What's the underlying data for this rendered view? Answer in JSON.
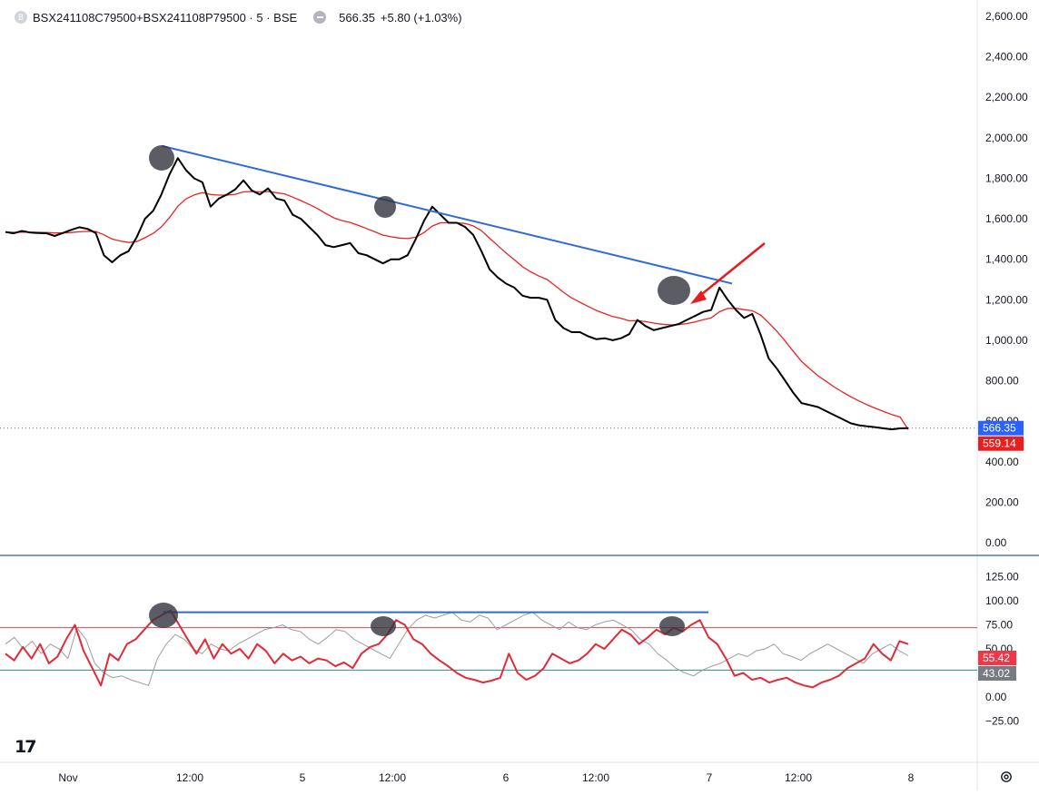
{
  "header": {
    "symbol_badge": "B",
    "symbol": "BSX241108C79500+BSX241108P79500 · 5 · BSE",
    "last": "566.35",
    "change": "+5.80 (+1.03%)"
  },
  "colors": {
    "price_line": "#000000",
    "ma_line": "#e82323",
    "trendline": "#2f6bd8",
    "arrow": "#e51d1d",
    "rsi_line": "#e02b38",
    "rsi_ma_line": "#9e9e9e",
    "overbought_line": "#d94a4a",
    "oversold_line": "#2a8f86",
    "last_price_badge": "#2962ff",
    "ma_badge": "#e81f1f",
    "rsi_badge": "#f23645",
    "rsi_ma_badge": "#787b86",
    "marker_fill": "#33353d"
  },
  "icons": {
    "brand": "tradingview-logo-icon",
    "settings": "gear-icon",
    "visibility": "eye-icon"
  },
  "chart_data": [
    {
      "type": "line",
      "pane": "price",
      "x_ticks": [
        "Nov",
        "12:00",
        "5",
        "12:00",
        "6",
        "12:00",
        "7",
        "12:00",
        "8"
      ],
      "y_ticks": [
        "2,600.00",
        "2,400.00",
        "2,200.00",
        "2,000.00",
        "1,800.00",
        "1,600.00",
        "1,400.00",
        "1,200.00",
        "1,000.00",
        "800.00",
        "600.00",
        "400.00",
        "200.00",
        "0.00"
      ],
      "ylim": [
        0,
        2600
      ],
      "last_value_label": "566.35",
      "ma_value_label": "559.14",
      "series": [
        {
          "values": [
            1535,
            1528,
            1540,
            1532,
            1530,
            1528,
            1515,
            1530,
            1545,
            1558,
            1550,
            1530,
            1420,
            1385,
            1420,
            1440,
            1510,
            1600,
            1640,
            1720,
            1820,
            1900,
            1840,
            1800,
            1780,
            1660,
            1700,
            1720,
            1745,
            1790,
            1740,
            1720,
            1750,
            1700,
            1690,
            1620,
            1600,
            1560,
            1520,
            1470,
            1460,
            1470,
            1480,
            1430,
            1420,
            1400,
            1380,
            1400,
            1400,
            1420,
            1500,
            1590,
            1660,
            1620,
            1580,
            1580,
            1560,
            1520,
            1440,
            1350,
            1310,
            1280,
            1260,
            1220,
            1210,
            1210,
            1200,
            1100,
            1060,
            1040,
            1040,
            1020,
            1005,
            1010,
            1000,
            1010,
            1030,
            1100,
            1070,
            1050,
            1060,
            1070,
            1080,
            1100,
            1120,
            1140,
            1150,
            1260,
            1200,
            1150,
            1110,
            1130,
            1030,
            910,
            860,
            800,
            740,
            690,
            680,
            670,
            650,
            630,
            610,
            590,
            580,
            575,
            570,
            565,
            560,
            565,
            566
          ]
        },
        {
          "values": [
            1535,
            1533,
            1534,
            1534,
            1533,
            1532,
            1530,
            1530,
            1532,
            1536,
            1538,
            1537,
            1521,
            1500,
            1490,
            1483,
            1488,
            1506,
            1528,
            1560,
            1606,
            1662,
            1698,
            1718,
            1729,
            1720,
            1717,
            1717,
            1721,
            1733,
            1735,
            1733,
            1735,
            1729,
            1723,
            1707,
            1690,
            1671,
            1651,
            1627,
            1605,
            1591,
            1582,
            1567,
            1552,
            1536,
            1519,
            1511,
            1505,
            1502,
            1509,
            1532,
            1564,
            1580,
            1580,
            1580,
            1577,
            1565,
            1541,
            1504,
            1467,
            1431,
            1398,
            1363,
            1338,
            1317,
            1300,
            1269,
            1237,
            1209,
            1188,
            1167,
            1147,
            1132,
            1117,
            1108,
            1096,
            1097,
            1092,
            1085,
            1079,
            1076,
            1077,
            1082,
            1090,
            1101,
            1111,
            1141,
            1157,
            1158,
            1151,
            1146,
            1125,
            1086,
            1044,
            996,
            945,
            896,
            859,
            825,
            797,
            769,
            744,
            721,
            700,
            681,
            664,
            648,
            633,
            621,
            559
          ]
        }
      ],
      "annotations": [
        {
          "type": "trendline",
          "from": [
            "Nov 4 ~10:30",
            1960
          ],
          "to": [
            "Nov 6 ~19:00",
            1280
          ]
        },
        {
          "type": "circle",
          "at": "swing high ~1900"
        },
        {
          "type": "circle",
          "at": "swing high ~1660"
        },
        {
          "type": "circle",
          "at": "swing high ~1260"
        },
        {
          "type": "arrow",
          "points_to": "swing high ~1260"
        }
      ]
    },
    {
      "type": "line",
      "pane": "rsi",
      "y_ticks": [
        "125.00",
        "100.00",
        "75.00",
        "50.00",
        "25.00",
        "0.00",
        "−25.00"
      ],
      "ylim": [
        -32,
        132
      ],
      "levels": [
        72,
        28
      ],
      "last_value_label": "55.42",
      "ma_value_label": "43.02",
      "series": [
        {
          "values": [
            45,
            38,
            52,
            40,
            55,
            35,
            42,
            60,
            75,
            48,
            30,
            12,
            45,
            38,
            55,
            60,
            70,
            80,
            85,
            90,
            75,
            60,
            45,
            60,
            40,
            55,
            45,
            50,
            40,
            55,
            48,
            35,
            45,
            38,
            42,
            35,
            40,
            38,
            32,
            36,
            30,
            45,
            52,
            55,
            65,
            80,
            75,
            60,
            55,
            45,
            38,
            32,
            25,
            20,
            18,
            15,
            17,
            20,
            45,
            25,
            18,
            22,
            30,
            45,
            40,
            35,
            38,
            45,
            55,
            50,
            60,
            70,
            65,
            55,
            62,
            70,
            65,
            72,
            68,
            75,
            80,
            62,
            55,
            40,
            22,
            25,
            18,
            20,
            15,
            18,
            20,
            15,
            12,
            10,
            15,
            18,
            22,
            30,
            35,
            40,
            55,
            45,
            38,
            58,
            55
          ]
        },
        {
          "values": [
            55,
            62,
            50,
            58,
            45,
            55,
            50,
            40,
            72,
            60,
            35,
            25,
            20,
            22,
            18,
            15,
            12,
            40,
            55,
            65,
            60,
            50,
            45,
            55,
            50,
            48,
            55,
            60,
            65,
            70,
            72,
            75,
            70,
            68,
            60,
            55,
            62,
            70,
            68,
            60,
            55,
            50,
            45,
            40,
            55,
            70,
            80,
            85,
            82,
            85,
            88,
            80,
            78,
            85,
            82,
            70,
            75,
            80,
            85,
            88,
            80,
            75,
            70,
            78,
            72,
            70,
            75,
            78,
            80,
            75,
            70,
            60,
            55,
            45,
            38,
            30,
            25,
            22,
            28,
            32,
            35,
            40,
            45,
            42,
            48,
            50,
            55,
            45,
            42,
            38,
            45,
            50,
            55,
            50,
            45,
            40,
            35,
            45,
            50,
            55,
            48,
            43
          ]
        }
      ],
      "annotations": [
        {
          "type": "horizontal_line",
          "value": 88
        },
        {
          "type": "circle",
          "at": "RSI peak ~90"
        },
        {
          "type": "circle",
          "at": "RSI peak ~80"
        },
        {
          "type": "circle",
          "at": "RSI peak ~80"
        }
      ]
    }
  ]
}
